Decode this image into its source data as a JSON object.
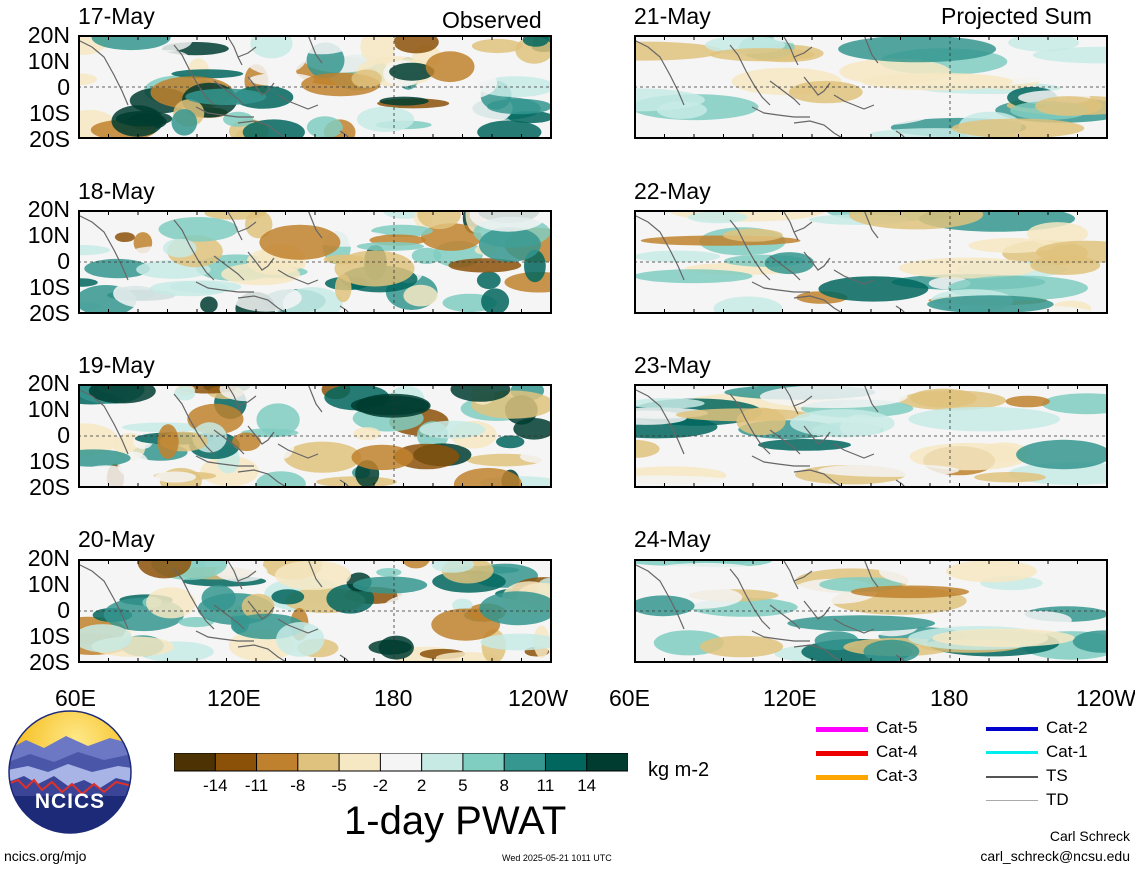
{
  "headers": {
    "left": "Observed",
    "right": "Projected Sum"
  },
  "latitude_labels": [
    "20N",
    "10N",
    "0",
    "10S",
    "20S"
  ],
  "longitude_labels": [
    "60E",
    "120E",
    "180",
    "120W"
  ],
  "panels": [
    {
      "date": "17-May",
      "column": "observed"
    },
    {
      "date": "18-May",
      "column": "observed"
    },
    {
      "date": "19-May",
      "column": "observed"
    },
    {
      "date": "20-May",
      "column": "observed"
    },
    {
      "date": "21-May",
      "column": "projected"
    },
    {
      "date": "22-May",
      "column": "projected"
    },
    {
      "date": "23-May",
      "column": "projected"
    },
    {
      "date": "24-May",
      "column": "projected"
    }
  ],
  "colorbar": {
    "title": "1-day PWAT",
    "units": "kg m-2",
    "tick_labels": [
      "-14",
      "-11",
      "-8",
      "-5",
      "-2",
      "2",
      "5",
      "8",
      "11",
      "14"
    ],
    "colors": [
      "#4d3304",
      "#8c5109",
      "#bf812d",
      "#dfc27d",
      "#f6e8c3",
      "#f5f5f5",
      "#c7eae5",
      "#80cdc1",
      "#35978f",
      "#01665e",
      "#003c30"
    ]
  },
  "storm_legend": [
    {
      "label": "Cat-5",
      "color": "#ff00ff"
    },
    {
      "label": "Cat-4",
      "color": "#ee0000"
    },
    {
      "label": "Cat-3",
      "color": "#ffa500"
    },
    {
      "label": "Cat-2",
      "color": "#0000cc"
    },
    {
      "label": "Cat-1",
      "color": "#00eeee"
    },
    {
      "label": "TS",
      "color": "#555555"
    },
    {
      "label": "TD",
      "color": "#aaaaaa"
    }
  ],
  "logo": {
    "text": "NCICS"
  },
  "footer": {
    "site": "ncics.org/mjo",
    "timestamp": "Wed 2025-05-21 1011 UTC",
    "author": "Carl Schreck",
    "email": "carl_schreck@ncsu.edu"
  }
}
